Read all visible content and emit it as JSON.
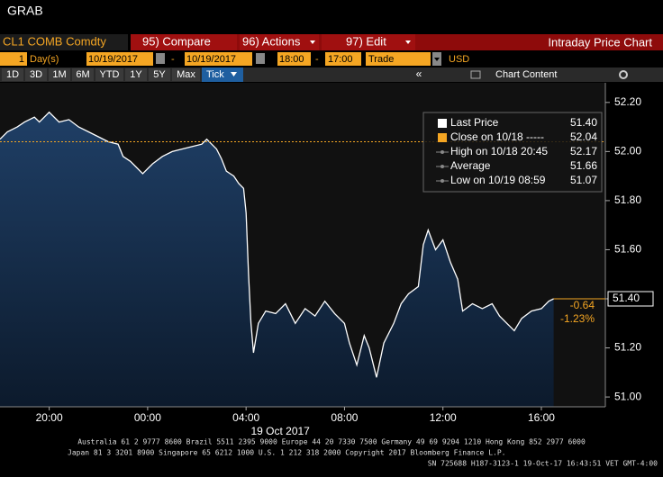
{
  "app_title": "GRAB",
  "toolbar": {
    "security": "CL1 COMB Comdty",
    "buttons": [
      "95) Compare",
      "96) Actions",
      "97) Edit"
    ],
    "screen_title": "Intraday Price Chart",
    "period_count": "1",
    "period_unit": "Day(s)",
    "start_date": "10/19/2017",
    "end_date": "10/19/2017",
    "start_time": "18:00",
    "end_time": "17:00",
    "dash": "-",
    "event": "Trade",
    "currency": "USD",
    "ranges": [
      "1D",
      "3D",
      "1M",
      "6M",
      "YTD",
      "1Y",
      "5Y",
      "Max"
    ],
    "frequency": "Tick",
    "collapse": "«",
    "chart_content": "Chart Content"
  },
  "chart_data": {
    "type": "line",
    "x": [
      0,
      0.3,
      0.7,
      1.0,
      1.4,
      1.6,
      2.0,
      2.4,
      2.8,
      3.2,
      3.6,
      4.0,
      4.4,
      4.8,
      5.0,
      5.3,
      5.6,
      5.8,
      6.2,
      6.6,
      7.0,
      7.4,
      7.8,
      8.2,
      8.4,
      8.8,
      9.0,
      9.2,
      9.5,
      9.7,
      9.9,
      10.0,
      10.1,
      10.2,
      10.3,
      10.5,
      10.8,
      11.2,
      11.6,
      12.0,
      12.4,
      12.8,
      13.2,
      13.6,
      14.0,
      14.2,
      14.5,
      14.8,
      15.0,
      15.3,
      15.6,
      16.0,
      16.3,
      16.6,
      17.0,
      17.2,
      17.4,
      17.7,
      18.0,
      18.3,
      18.6,
      18.8,
      19.2,
      19.6,
      20.0,
      20.3,
      20.6,
      20.9,
      21.2,
      21.6,
      22.0,
      22.3,
      22.5
    ],
    "series": [
      {
        "name": "Last Price",
        "color": "#ffffff",
        "values": [
          52.05,
          52.08,
          52.1,
          52.12,
          52.14,
          52.12,
          52.16,
          52.12,
          52.13,
          52.1,
          52.08,
          52.06,
          52.04,
          52.03,
          51.98,
          51.96,
          51.93,
          51.91,
          51.95,
          51.98,
          52.0,
          52.01,
          52.02,
          52.03,
          52.05,
          52.01,
          51.97,
          51.92,
          51.9,
          51.87,
          51.85,
          51.75,
          51.5,
          51.3,
          51.18,
          51.3,
          51.35,
          51.34,
          51.38,
          51.3,
          51.36,
          51.33,
          51.39,
          51.34,
          51.3,
          51.22,
          51.13,
          51.25,
          51.2,
          51.08,
          51.22,
          51.3,
          51.38,
          51.42,
          51.45,
          51.62,
          51.68,
          51.6,
          51.64,
          51.55,
          51.48,
          51.35,
          51.38,
          51.36,
          51.38,
          51.33,
          51.3,
          51.27,
          51.32,
          51.35,
          51.36,
          51.39,
          51.4
        ]
      }
    ],
    "close_line": {
      "value": 52.04,
      "color": "#f5a623"
    },
    "last_price_marker": {
      "value": 51.4,
      "label": "51.40"
    },
    "change": [
      "-0.64",
      "-1.23%"
    ],
    "legend": [
      {
        "label": "Last Price",
        "value": "51.40"
      },
      {
        "label": "Close on 10/18 -----",
        "value": "52.04"
      },
      {
        "label": "High on 10/18 20:45",
        "value": "52.17"
      },
      {
        "label": "Average",
        "value": "51.66"
      },
      {
        "label": "Low on 10/19 08:59",
        "value": "51.07"
      }
    ],
    "xlim": [
      0,
      24.6
    ],
    "xticks": [
      {
        "value": 2,
        "label": "20:00"
      },
      {
        "value": 6,
        "label": "00:00"
      },
      {
        "value": 10,
        "label": "04:00"
      },
      {
        "value": 14,
        "label": "08:00"
      },
      {
        "value": 18,
        "label": "12:00"
      },
      {
        "value": 22,
        "label": "16:00"
      }
    ],
    "date_label": "19 Oct 2017",
    "ylim": [
      50.96,
      52.28
    ],
    "yticks": [
      {
        "value": 52.2,
        "label": "52.20"
      },
      {
        "value": 52,
        "label": "52.00"
      },
      {
        "value": 51.8,
        "label": "51.80"
      },
      {
        "value": 51.6,
        "label": "51.60"
      },
      {
        "value": 51.4,
        "label": "51.40"
      },
      {
        "value": 51.2,
        "label": "51.20"
      },
      {
        "value": 51,
        "label": "51.00"
      }
    ]
  },
  "footer": [
    "Australia 61 2 9777 8600 Brazil 5511 2395 9000 Europe 44 20 7330 7500 Germany 49 69 9204 1210 Hong Kong 852 2977 6000",
    "Japan 81 3 3201 8900        Singapore 65 6212 1000        U.S. 1 212 318 2000        Copyright 2017 Bloomberg Finance L.P.",
    "SN 725688 H187-3123-1 19-Oct-17 16:43:51 VET  GMT-4:00"
  ]
}
